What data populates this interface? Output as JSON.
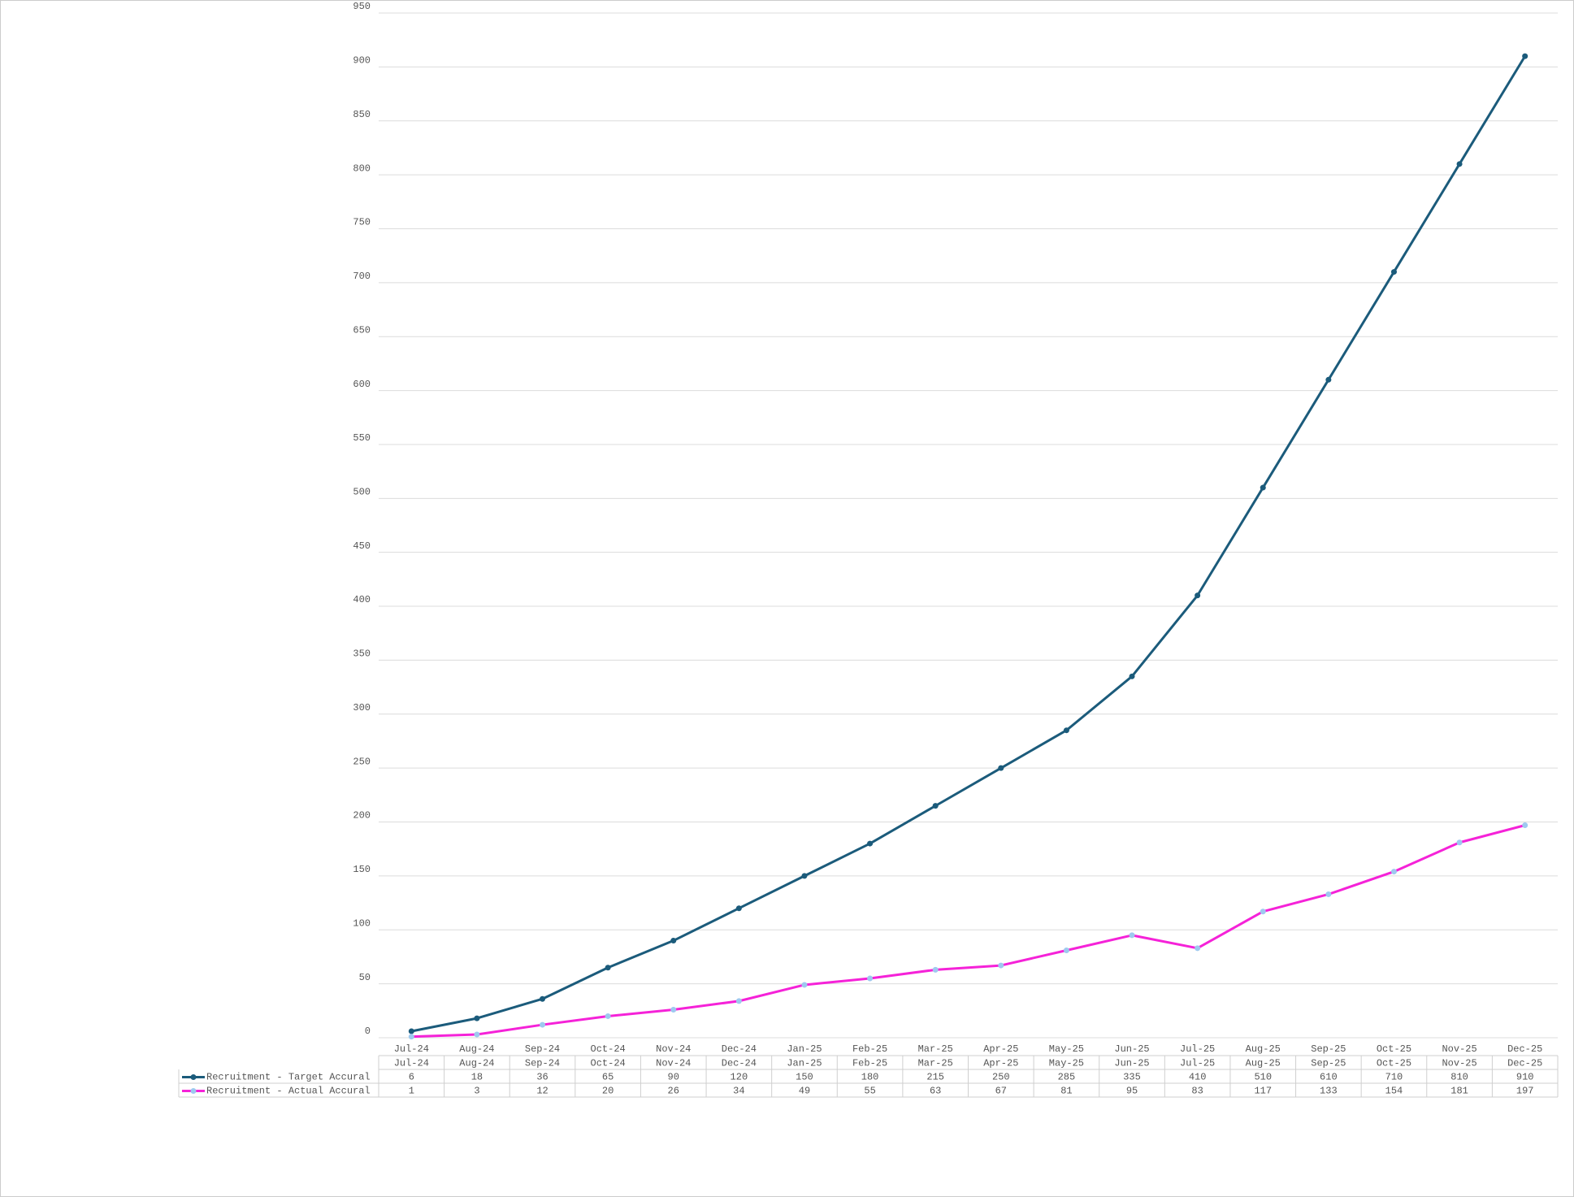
{
  "chart_data": {
    "type": "line",
    "categories": [
      "Jul-24",
      "Aug-24",
      "Sep-24",
      "Oct-24",
      "Nov-24",
      "Dec-24",
      "Jan-25",
      "Feb-25",
      "Mar-25",
      "Apr-25",
      "May-25",
      "Jun-25",
      "Jul-25",
      "Aug-25",
      "Sep-25",
      "Oct-25",
      "Nov-25",
      "Dec-25"
    ],
    "series": [
      {
        "name": "Recruitment - Target Accural",
        "color": "#1b5b7b",
        "marker_color": "#1b5b7b",
        "values": [
          6,
          18,
          36,
          65,
          90,
          120,
          150,
          180,
          215,
          250,
          285,
          335,
          410,
          510,
          610,
          710,
          810,
          910
        ]
      },
      {
        "name": "Recruitment - Actual Accural",
        "color": "#f522d8",
        "marker_color": "#9ec9ef",
        "values": [
          1,
          3,
          12,
          20,
          26,
          34,
          49,
          55,
          63,
          67,
          81,
          95,
          83,
          117,
          133,
          154,
          181,
          197
        ]
      }
    ],
    "ylim": [
      0,
      950
    ],
    "yticks": [
      0,
      50,
      100,
      150,
      200,
      250,
      300,
      350,
      400,
      450,
      500,
      550,
      600,
      650,
      700,
      750,
      800,
      850,
      900,
      950
    ],
    "grid": true,
    "data_table": true
  }
}
